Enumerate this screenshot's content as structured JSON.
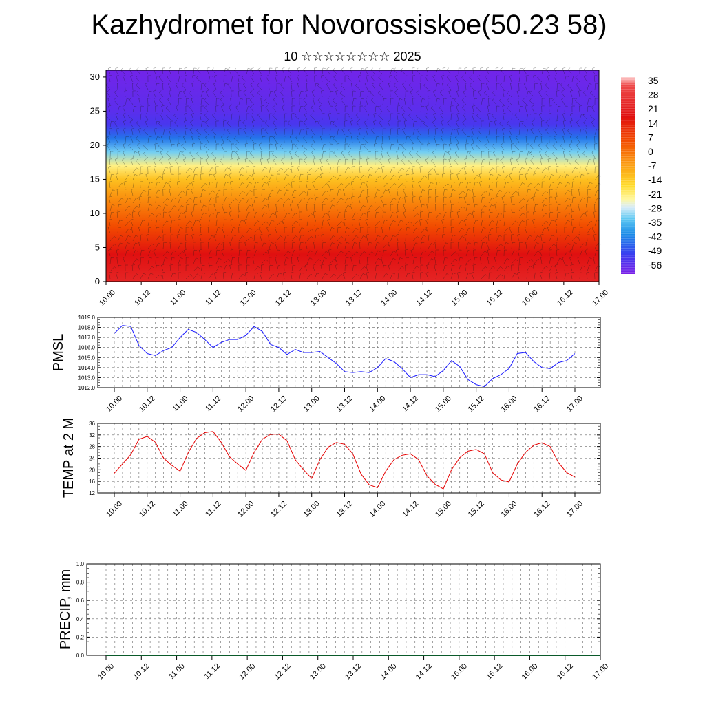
{
  "title": "Kazhydromet for Novorossiskoe(50.23 58)",
  "subtitle": "10 ☆☆☆☆☆☆☆☆ 2025",
  "time_labels": [
    "10.00",
    "10.12",
    "11.00",
    "11.12",
    "12.00",
    "12.12",
    "13.00",
    "13.12",
    "14.00",
    "14.12",
    "15.00",
    "15.12",
    "16.00",
    "16.12",
    "17.00"
  ],
  "colors": {
    "pmsl_line": "#1a1aff",
    "temp_line": "#e60000",
    "precip_line": "#0a5a2a",
    "grid": "#666666"
  },
  "chart_data": [
    {
      "type": "heatmap",
      "title": "",
      "ylim": [
        0,
        31
      ],
      "yticks": [
        0,
        5,
        10,
        15,
        20,
        25,
        30
      ],
      "xticks": [
        "10.00",
        "10.12",
        "11.00",
        "11.12",
        "12.00",
        "12.12",
        "13.00",
        "13.12",
        "14.00",
        "14.12",
        "15.00",
        "15.12",
        "16.00",
        "16.12",
        "17.00"
      ],
      "colorbar": {
        "labels": [
          "35",
          "28",
          "21",
          "14",
          "7",
          "0",
          "-7",
          "-14",
          "-21",
          "-28",
          "-35",
          "-42",
          "-49",
          "-56"
        ],
        "range": [
          -63,
          42
        ]
      },
      "level_profile": [
        {
          "level": 0,
          "value": 28
        },
        {
          "level": 4,
          "value": 24
        },
        {
          "level": 8,
          "value": 14
        },
        {
          "level": 12,
          "value": 5
        },
        {
          "level": 15,
          "value": -3
        },
        {
          "level": 17,
          "value": -10
        },
        {
          "level": 19,
          "value": -20
        },
        {
          "level": 21,
          "value": -32
        },
        {
          "level": 23,
          "value": -45
        },
        {
          "level": 25,
          "value": -52
        },
        {
          "level": 28,
          "value": -56
        },
        {
          "level": 31,
          "value": -60
        }
      ],
      "overlay": "wind barbs"
    },
    {
      "type": "line",
      "ylabel": "PMSL",
      "ylim": [
        1012.0,
        1019.0
      ],
      "yticks": [
        "1012.0",
        "1013.0",
        "1014.0",
        "1015.0",
        "1016.0",
        "1017.0",
        "1018.0",
        "1019.0"
      ],
      "x": [
        "10.00",
        "10.03",
        "10.06",
        "10.09",
        "10.12",
        "10.15",
        "10.18",
        "10.21",
        "11.00",
        "11.03",
        "11.06",
        "11.09",
        "11.12",
        "11.15",
        "11.18",
        "11.21",
        "12.00",
        "12.03",
        "12.06",
        "12.09",
        "12.12",
        "12.15",
        "12.18",
        "12.21",
        "13.00",
        "13.03",
        "13.06",
        "13.09",
        "13.12",
        "13.15",
        "13.18",
        "13.21",
        "14.00",
        "14.03",
        "14.06",
        "14.09",
        "14.12",
        "14.15",
        "14.18",
        "14.21",
        "15.00",
        "15.03",
        "15.06",
        "15.09",
        "15.12",
        "15.15",
        "15.18",
        "15.21",
        "16.00",
        "16.03",
        "16.06",
        "16.09",
        "16.12",
        "16.15",
        "16.18",
        "16.21",
        "17.00"
      ],
      "series": [
        {
          "values": [
            1017.4,
            1018.2,
            1018.1,
            1016.2,
            1015.4,
            1015.2,
            1015.7,
            1016.0,
            1017.0,
            1017.8,
            1017.5,
            1016.8,
            1016.0,
            1016.5,
            1016.8,
            1016.8,
            1017.2,
            1018.1,
            1017.6,
            1016.3,
            1016.0,
            1015.3,
            1015.8,
            1015.5,
            1015.5,
            1015.6,
            1015.0,
            1014.4,
            1013.6,
            1013.5,
            1013.6,
            1013.5,
            1014.0,
            1014.9,
            1014.6,
            1013.9,
            1013.0,
            1013.3,
            1013.3,
            1013.1,
            1013.7,
            1014.7,
            1014.1,
            1012.8,
            1012.3,
            1012.1,
            1012.9,
            1013.3,
            1013.9,
            1015.4,
            1015.5,
            1014.6,
            1014.0,
            1013.9,
            1014.5,
            1014.7,
            1015.4
          ]
        }
      ]
    },
    {
      "type": "line",
      "ylabel": "TEMP at 2 M",
      "ylim": [
        12,
        36
      ],
      "yticks": [
        "12",
        "16",
        "20",
        "24",
        "28",
        "32",
        "36"
      ],
      "x": [
        "10.00",
        "10.03",
        "10.06",
        "10.09",
        "10.12",
        "10.15",
        "10.18",
        "10.21",
        "11.00",
        "11.03",
        "11.06",
        "11.09",
        "11.12",
        "11.15",
        "11.18",
        "11.21",
        "12.00",
        "12.03",
        "12.06",
        "12.09",
        "12.12",
        "12.15",
        "12.18",
        "12.21",
        "13.00",
        "13.03",
        "13.06",
        "13.09",
        "13.12",
        "13.15",
        "13.18",
        "13.21",
        "14.00",
        "14.03",
        "14.06",
        "14.09",
        "14.12",
        "14.15",
        "14.18",
        "14.21",
        "15.00",
        "15.03",
        "15.06",
        "15.09",
        "15.12",
        "15.15",
        "15.18",
        "15.21",
        "16.00",
        "16.03",
        "16.06",
        "16.09",
        "16.12",
        "16.15",
        "16.18",
        "16.21",
        "17.00"
      ],
      "series": [
        {
          "values": [
            18.8,
            22.0,
            25.2,
            30.5,
            31.5,
            29.5,
            24.0,
            21.5,
            19.5,
            26.0,
            30.8,
            32.8,
            33.2,
            29.5,
            24.5,
            22.0,
            19.8,
            26.0,
            30.5,
            32.2,
            32.3,
            30.0,
            23.5,
            20.0,
            17.0,
            23.5,
            27.8,
            29.4,
            28.8,
            25.5,
            18.5,
            14.8,
            13.8,
            19.5,
            23.5,
            25.0,
            25.5,
            23.5,
            18.0,
            15.0,
            13.4,
            20.0,
            24.2,
            26.4,
            27.0,
            25.5,
            19.0,
            16.5,
            15.8,
            22.0,
            26.0,
            28.5,
            29.3,
            28.0,
            22.5,
            19.0,
            17.5
          ]
        }
      ]
    },
    {
      "type": "line",
      "ylabel": "PRECIP, mm",
      "ylim": [
        0.0,
        1.0
      ],
      "yticks": [
        "0.0",
        "0.2",
        "0.4",
        "0.6",
        "0.8",
        "1.0"
      ],
      "x": [
        "10.00",
        "17.00"
      ],
      "series": [
        {
          "values": [
            0.0,
            0.0
          ]
        }
      ]
    }
  ]
}
